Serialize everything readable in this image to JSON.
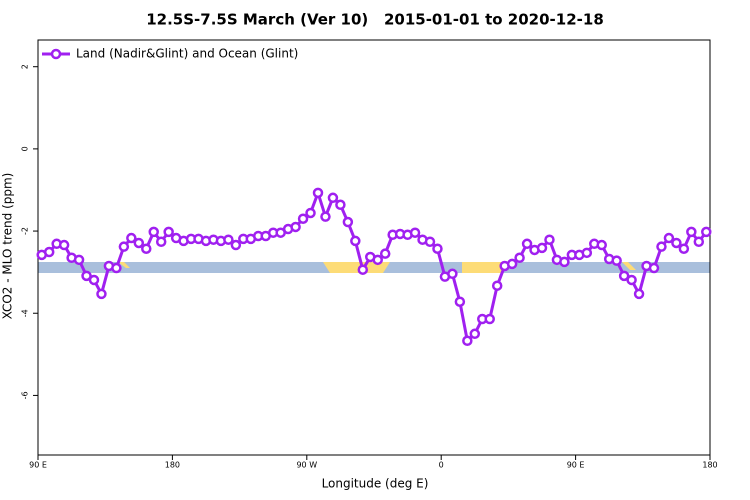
{
  "chart_data": {
    "type": "line",
    "title": "12.5S-7.5S March (Ver 10)   2015-01-01 to 2020-12-18",
    "x_label": "Longitude (deg E)",
    "y_label": "XCO2 - MLO trend (ppm)",
    "legend_position": "top-left",
    "xlim": [
      90,
      540
    ],
    "ylim": [
      -7.45,
      2.65
    ],
    "xticks": [
      {
        "value": 90,
        "label": "90 E"
      },
      {
        "value": 180,
        "label": "180"
      },
      {
        "value": 270,
        "label": "90 W"
      },
      {
        "value": 360,
        "label": "0"
      },
      {
        "value": 450,
        "label": "90 E"
      },
      {
        "value": 540,
        "label": "180"
      }
    ],
    "yticks": [
      2,
      0,
      -2,
      -4,
      -6
    ],
    "x": [
      92.5,
      97.5,
      102.5,
      107.5,
      112.5,
      117.5,
      122.5,
      127.5,
      132.5,
      137.5,
      142.5,
      147.5,
      152.5,
      157.5,
      162.5,
      167.5,
      172.5,
      177.5,
      182.5,
      187.5,
      192.5,
      197.5,
      202.5,
      207.5,
      212.5,
      217.5,
      222.5,
      227.5,
      232.5,
      237.5,
      242.5,
      247.5,
      252.5,
      257.5,
      262.5,
      267.5,
      272.5,
      277.5,
      282.5,
      287.5,
      292.5,
      297.5,
      302.5,
      307.5,
      312.5,
      317.5,
      322.5,
      327.5,
      332.5,
      337.5,
      342.5,
      347.5,
      352.5,
      357.5,
      362.5,
      367.5,
      372.5,
      377.5,
      382.5,
      387.5,
      392.5,
      397.5,
      402.5,
      407.5,
      412.5,
      417.5,
      422.5,
      427.5,
      432.5,
      437.5,
      442.5,
      447.5,
      452.5,
      457.5,
      462.5,
      467.5,
      472.5,
      477.5,
      482.5,
      487.5,
      492.5,
      497.5,
      502.5,
      507.5,
      512.5,
      517.5,
      522.5,
      527.5,
      532.5,
      537.5
    ],
    "series": [
      {
        "name": "Land (Nadir&Glint) and Ocean (Glint)",
        "color": "#a020f0",
        "values": [
          -2.58,
          -2.51,
          -2.31,
          -2.34,
          -2.65,
          -2.7,
          -3.09,
          -3.19,
          -3.53,
          -2.85,
          -2.9,
          -2.38,
          -2.17,
          -2.29,
          -2.43,
          -2.02,
          -2.26,
          -2.02,
          -2.17,
          -2.24,
          -2.19,
          -2.19,
          -2.24,
          -2.21,
          -2.24,
          -2.21,
          -2.34,
          -2.19,
          -2.19,
          -2.12,
          -2.12,
          -2.04,
          -2.04,
          -1.95,
          -1.9,
          -1.7,
          -1.56,
          -1.07,
          -1.65,
          -1.19,
          -1.36,
          -1.78,
          -2.24,
          -2.94,
          -2.63,
          -2.7,
          -2.55,
          -2.09,
          -2.07,
          -2.09,
          -2.04,
          -2.21,
          -2.26,
          -2.43,
          -3.11,
          -3.04,
          -3.72,
          -4.67,
          -4.5,
          -4.14,
          -4.14,
          -3.33,
          -2.85,
          -2.8,
          -2.65,
          -2.31,
          -2.46,
          -2.41,
          -2.21,
          -2.7,
          -2.75,
          -2.58,
          -2.58,
          -2.53,
          -2.31,
          -2.34,
          -2.68,
          -2.72,
          -3.09,
          -3.19,
          -3.53,
          -2.85,
          -2.9,
          -2.38,
          -2.17,
          -2.29,
          -2.43,
          -2.02,
          -2.26,
          -2.02
        ]
      }
    ]
  }
}
